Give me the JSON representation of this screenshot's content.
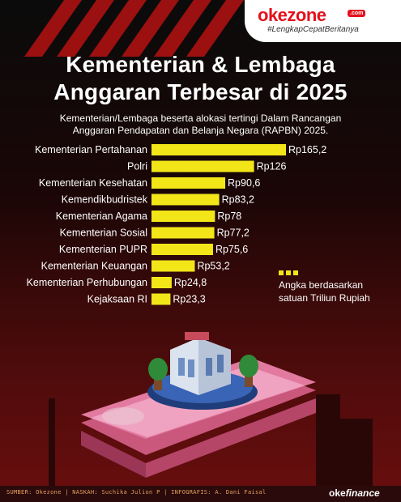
{
  "brand": {
    "logo": "okezone",
    "domain": ".com",
    "tagline": "#LengkapCepatBeritanya"
  },
  "title_line1": "Kementerian & Lembaga",
  "title_line2": "Anggaran Terbesar di 2025",
  "subtitle_line1": "Kementerian/Lembaga beserta alokasi tertingi Dalam Rancangan",
  "subtitle_line2": "Anggaran Pendapatan dan Belanja Negara (RAPBN) 2025.",
  "legend": {
    "line1": "Angka berdasarkan",
    "line2": "satuan Triliun Rupiah"
  },
  "footer": {
    "credits": "SUMBER: Okezone | NASKAH: Suchika Julion P | INFOGRAFIS: A. Dani Faisal",
    "brand_oke": "oke",
    "brand_finance": "finance"
  },
  "colors": {
    "bar": "#f2e619",
    "accent": "#e4111b",
    "background": "#1a0606"
  },
  "chart_data": {
    "type": "bar",
    "orientation": "horizontal",
    "categories": [
      "Kementerian Pertahanan",
      "Polri",
      "Kementerian Kesehatan",
      "Kemendikbudristek",
      "Kementerian Agama",
      "Kementerian Sosial",
      "Kementerian PUPR",
      "Kementerian Keuangan",
      "Kementerian Perhubungan",
      "Kejaksaan RI"
    ],
    "values": [
      165.2,
      126,
      90.6,
      83.2,
      78,
      77.2,
      75.6,
      53.2,
      24.8,
      23.3
    ],
    "labels": [
      "Rp165,2",
      "Rp126",
      "Rp90,6",
      "Rp83,2",
      "Rp78",
      "Rp77,2",
      "Rp75,6",
      "Rp53,2",
      "Rp24,8",
      "Rp23,3"
    ],
    "grid": false
  }
}
